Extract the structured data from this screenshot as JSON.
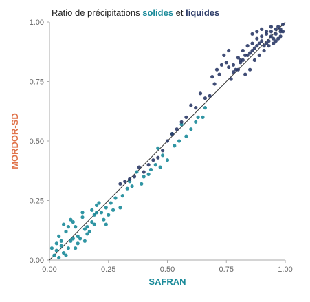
{
  "chart_data": {
    "type": "scatter",
    "title_parts": [
      "Ratio de précipitations ",
      "solides",
      " et ",
      "liquides"
    ],
    "xlabel": "SAFRAN",
    "ylabel": "MORDOR-SD",
    "xlim": [
      0,
      1
    ],
    "ylim": [
      0,
      1
    ],
    "x_ticks": [
      "0.00",
      "0.25",
      "0.50",
      "0.75",
      "1.00"
    ],
    "y_ticks": [
      "0.00",
      "0.25",
      "0.50",
      "0.75",
      "1.00"
    ],
    "grid": false,
    "reference_line": "y = x",
    "colors": {
      "solides": "#1a8a99",
      "liquides": "#2b3a67",
      "title_text": "#222222",
      "xlabel": "#1a8a99",
      "ylabel": "#e0734a",
      "axis": "#aaaaaa",
      "ref_line": "#333333"
    },
    "series": [
      {
        "name": "solides",
        "points": [
          [
            0.03,
            0.04
          ],
          [
            0.05,
            0.06
          ],
          [
            0.08,
            0.05
          ],
          [
            0.1,
            0.09
          ],
          [
            0.12,
            0.1
          ],
          [
            0.04,
            0.1
          ],
          [
            0.07,
            0.12
          ],
          [
            0.15,
            0.13
          ],
          [
            0.18,
            0.16
          ],
          [
            0.2,
            0.2
          ],
          [
            0.22,
            0.2
          ],
          [
            0.24,
            0.22
          ],
          [
            0.26,
            0.24
          ],
          [
            0.14,
            0.18
          ],
          [
            0.11,
            0.14
          ],
          [
            0.17,
            0.12
          ],
          [
            0.19,
            0.15
          ],
          [
            0.23,
            0.17
          ],
          [
            0.25,
            0.19
          ],
          [
            0.21,
            0.24
          ],
          [
            0.02,
            0.02
          ],
          [
            0.06,
            0.03
          ],
          [
            0.09,
            0.08
          ],
          [
            0.13,
            0.09
          ],
          [
            0.16,
            0.11
          ],
          [
            0.05,
            0.08
          ],
          [
            0.08,
            0.14
          ],
          [
            0.1,
            0.16
          ],
          [
            0.12,
            0.07
          ],
          [
            0.15,
            0.08
          ],
          [
            0.28,
            0.26
          ],
          [
            0.31,
            0.27
          ],
          [
            0.34,
            0.33
          ],
          [
            0.37,
            0.37
          ],
          [
            0.4,
            0.35
          ],
          [
            0.43,
            0.38
          ],
          [
            0.45,
            0.4
          ],
          [
            0.48,
            0.44
          ],
          [
            0.5,
            0.42
          ],
          [
            0.53,
            0.48
          ],
          [
            0.55,
            0.5
          ],
          [
            0.58,
            0.52
          ],
          [
            0.6,
            0.55
          ],
          [
            0.63,
            0.6
          ],
          [
            0.66,
            0.64
          ],
          [
            0.35,
            0.31
          ],
          [
            0.39,
            0.32
          ],
          [
            0.46,
            0.47
          ],
          [
            0.52,
            0.53
          ],
          [
            0.56,
            0.57
          ],
          [
            0.06,
            0.15
          ],
          [
            0.09,
            0.17
          ],
          [
            0.14,
            0.2
          ],
          [
            0.18,
            0.21
          ],
          [
            0.07,
            0.02
          ],
          [
            0.11,
            0.05
          ],
          [
            0.03,
            0.07
          ],
          [
            0.01,
            0.05
          ],
          [
            0.2,
            0.23
          ],
          [
            0.24,
            0.15
          ],
          [
            0.27,
            0.21
          ],
          [
            0.3,
            0.22
          ],
          [
            0.33,
            0.3
          ],
          [
            0.42,
            0.36
          ],
          [
            0.47,
            0.39
          ],
          [
            0.62,
            0.58
          ],
          [
            0.65,
            0.6
          ],
          [
            0.04,
            0.01
          ],
          [
            0.16,
            0.14
          ],
          [
            0.19,
            0.19
          ]
        ]
      },
      {
        "name": "liquides",
        "points": [
          [
            0.78,
            0.82
          ],
          [
            0.8,
            0.85
          ],
          [
            0.82,
            0.88
          ],
          [
            0.84,
            0.9
          ],
          [
            0.86,
            0.91
          ],
          [
            0.88,
            0.93
          ],
          [
            0.9,
            0.94
          ],
          [
            0.92,
            0.95
          ],
          [
            0.94,
            0.96
          ],
          [
            0.96,
            0.97
          ],
          [
            0.97,
            0.98
          ],
          [
            0.98,
            0.97
          ],
          [
            0.99,
            0.99
          ],
          [
            0.95,
            0.93
          ],
          [
            0.93,
            0.9
          ],
          [
            0.91,
            0.88
          ],
          [
            0.89,
            0.86
          ],
          [
            0.87,
            0.84
          ],
          [
            0.85,
            0.8
          ],
          [
            0.83,
            0.78
          ],
          [
            0.81,
            0.84
          ],
          [
            0.79,
            0.8
          ],
          [
            0.77,
            0.76
          ],
          [
            0.75,
            0.83
          ],
          [
            0.74,
            0.86
          ],
          [
            0.76,
            0.88
          ],
          [
            0.72,
            0.78
          ],
          [
            0.7,
            0.74
          ],
          [
            0.68,
            0.69
          ],
          [
            0.66,
            0.68
          ],
          [
            0.64,
            0.7
          ],
          [
            0.62,
            0.64
          ],
          [
            0.6,
            0.65
          ],
          [
            0.58,
            0.6
          ],
          [
            0.56,
            0.58
          ],
          [
            0.54,
            0.55
          ],
          [
            0.52,
            0.53
          ],
          [
            0.5,
            0.5
          ],
          [
            0.48,
            0.46
          ],
          [
            0.46,
            0.43
          ],
          [
            0.44,
            0.42
          ],
          [
            0.42,
            0.4
          ],
          [
            0.4,
            0.37
          ],
          [
            0.38,
            0.39
          ],
          [
            0.36,
            0.35
          ],
          [
            0.34,
            0.34
          ],
          [
            0.32,
            0.33
          ],
          [
            0.3,
            0.32
          ],
          [
            0.86,
            0.95
          ],
          [
            0.88,
            0.96
          ],
          [
            0.9,
            0.97
          ],
          [
            0.92,
            0.96
          ],
          [
            0.94,
            0.98
          ],
          [
            0.96,
            0.95
          ],
          [
            0.98,
            0.96
          ],
          [
            0.97,
            0.93
          ],
          [
            0.95,
            0.91
          ],
          [
            0.93,
            0.92
          ],
          [
            0.91,
            0.9
          ],
          [
            0.89,
            0.91
          ],
          [
            0.87,
            0.89
          ],
          [
            0.85,
            0.87
          ],
          [
            0.83,
            0.86
          ],
          [
            0.81,
            0.83
          ],
          [
            0.8,
            0.8
          ],
          [
            0.78,
            0.79
          ],
          [
            0.76,
            0.81
          ],
          [
            0.73,
            0.82
          ],
          [
            0.71,
            0.8
          ],
          [
            0.69,
            0.77
          ],
          [
            0.99,
            0.96
          ],
          [
            0.98,
            0.94
          ],
          [
            0.96,
            0.92
          ],
          [
            0.94,
            0.94
          ],
          [
            0.92,
            0.91
          ],
          [
            0.9,
            0.92
          ],
          [
            0.88,
            0.9
          ],
          [
            0.86,
            0.88
          ],
          [
            0.84,
            0.86
          ],
          [
            0.82,
            0.84
          ]
        ]
      }
    ]
  }
}
